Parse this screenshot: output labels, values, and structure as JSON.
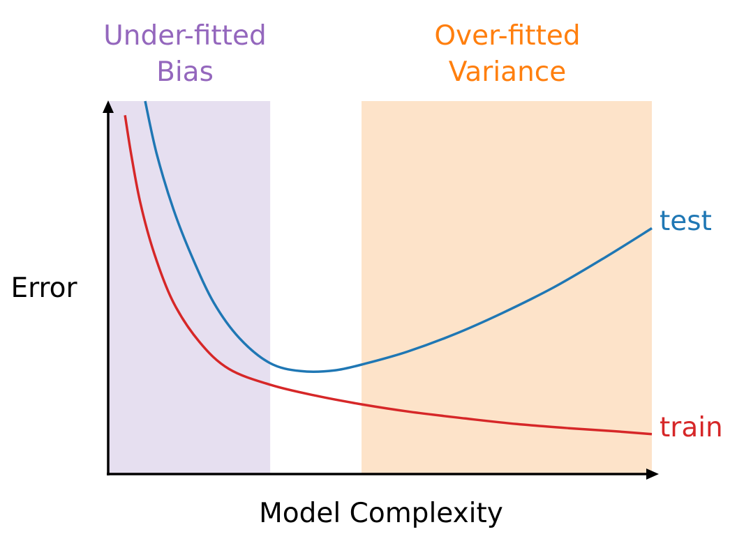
{
  "chart_data": {
    "type": "line",
    "xlabel": "Model Complexity",
    "ylabel": "Error",
    "axis_ticks": false,
    "grid": false,
    "xlim": [
      0,
      10
    ],
    "ylim": [
      0,
      10
    ],
    "regions": [
      {
        "name": "under-fitted",
        "title_lines": [
          "Under-fitted",
          "Bias"
        ],
        "x_range": [
          0,
          2.98
        ],
        "color": "#9467bd",
        "fill": "#e6dff0"
      },
      {
        "name": "over-fitted",
        "title_lines": [
          "Over-fitted",
          "Variance"
        ],
        "x_range": [
          4.66,
          10
        ],
        "color": "#ff7f0e",
        "fill": "#fde3c9"
      }
    ],
    "series": [
      {
        "name": "test",
        "color": "#1f77b4",
        "points": [
          [
            0.68,
            10
          ],
          [
            0.89,
            8.6
          ],
          [
            1.2,
            7.1
          ],
          [
            1.55,
            5.8
          ],
          [
            1.94,
            4.6
          ],
          [
            2.41,
            3.65
          ],
          [
            2.97,
            2.98
          ],
          [
            3.54,
            2.76
          ],
          [
            4.17,
            2.78
          ],
          [
            4.78,
            2.98
          ],
          [
            5.5,
            3.28
          ],
          [
            6.34,
            3.73
          ],
          [
            7.24,
            4.31
          ],
          [
            8.2,
            5.01
          ],
          [
            9.14,
            5.81
          ],
          [
            10,
            6.59
          ]
        ]
      },
      {
        "name": "train",
        "color": "#d62728",
        "points": [
          [
            0.31,
            9.62
          ],
          [
            0.42,
            8.6
          ],
          [
            0.59,
            7.28
          ],
          [
            0.85,
            5.9
          ],
          [
            1.2,
            4.6
          ],
          [
            1.68,
            3.54
          ],
          [
            2.22,
            2.82
          ],
          [
            2.99,
            2.39
          ],
          [
            3.82,
            2.1
          ],
          [
            4.66,
            1.87
          ],
          [
            5.55,
            1.67
          ],
          [
            6.57,
            1.49
          ],
          [
            7.52,
            1.34
          ],
          [
            8.47,
            1.23
          ],
          [
            9.3,
            1.15
          ],
          [
            10,
            1.07
          ]
        ]
      }
    ]
  }
}
